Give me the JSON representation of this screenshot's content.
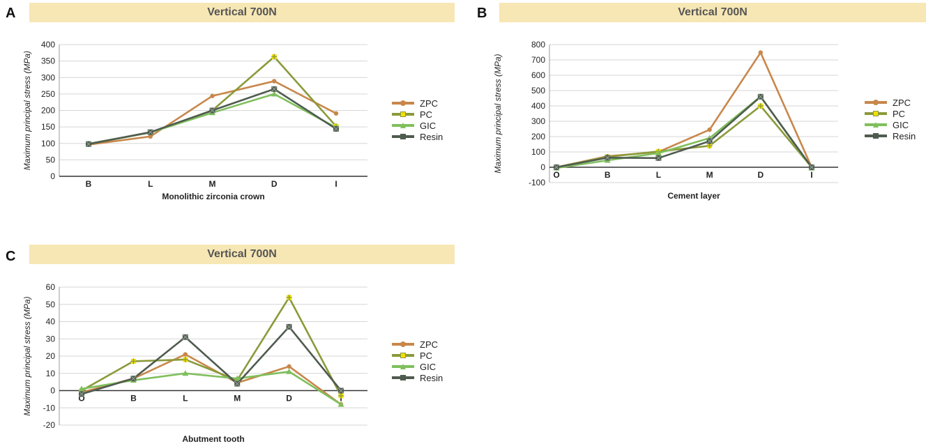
{
  "panels": [
    {
      "letter": "A",
      "banner": "Vertical 700N"
    },
    {
      "letter": "B",
      "banner": "Vertical 700N"
    },
    {
      "letter": "C",
      "banner": "Vertical 700N"
    }
  ],
  "colors": {
    "ZPC": "#c8874b",
    "PC": "#8a9a3a",
    "GIC": "#7fbf5c",
    "Resin": "#4f5b4f",
    "pc_marker": "#f0e000",
    "banner_bg": "#f7e7b5",
    "grid": "#d6d6d6"
  },
  "legend": [
    "ZPC",
    "PC",
    "GIC",
    "Resin"
  ],
  "chart_data": [
    {
      "type": "line",
      "title": "Vertical 700N",
      "xlabel": "Monolithic zirconia crown",
      "ylabel": "Maximum principal stress (MPa)",
      "categories": [
        "B",
        "L",
        "M",
        "D",
        "I"
      ],
      "ylim": [
        0,
        400
      ],
      "yticks": [
        0,
        50,
        100,
        150,
        200,
        250,
        300,
        350,
        400
      ],
      "grid": true,
      "legend_position": "right",
      "series": [
        {
          "name": "ZPC",
          "values": [
            96,
            121,
            244,
            289,
            191
          ]
        },
        {
          "name": "PC",
          "values": [
            98,
            133,
            200,
            363,
            152
          ]
        },
        {
          "name": "GIC",
          "values": [
            99,
            133,
            193,
            250,
            148
          ]
        },
        {
          "name": "Resin",
          "values": [
            98,
            134,
            200,
            265,
            144
          ]
        }
      ]
    },
    {
      "type": "line",
      "title": "Vertical 700N",
      "xlabel": "Cement layer",
      "ylabel": "Maximum principal stress (MPa)",
      "categories": [
        "O",
        "B",
        "L",
        "M",
        "D",
        "I"
      ],
      "ylim": [
        -100,
        800
      ],
      "yticks": [
        -100,
        0,
        100,
        200,
        300,
        400,
        500,
        600,
        700,
        800
      ],
      "grid": true,
      "legend_position": "right",
      "series": [
        {
          "name": "ZPC",
          "values": [
            0,
            72,
            100,
            245,
            748,
            0
          ]
        },
        {
          "name": "PC",
          "values": [
            0,
            68,
            103,
            140,
            400,
            0
          ]
        },
        {
          "name": "GIC",
          "values": [
            -5,
            45,
            92,
            190,
            462,
            -5
          ]
        },
        {
          "name": "Resin",
          "values": [
            0,
            62,
            60,
            170,
            460,
            0
          ]
        }
      ]
    },
    {
      "type": "line",
      "title": "Vertical 700N",
      "xlabel": "Abutment tooth",
      "ylabel": "Maximum principal stress (MPa)",
      "categories": [
        "O",
        "B",
        "L",
        "M",
        "D",
        "I"
      ],
      "ylim": [
        -20,
        60
      ],
      "yticks": [
        -20,
        -10,
        0,
        10,
        20,
        30,
        40,
        50,
        60
      ],
      "grid": true,
      "legend_position": "right",
      "series": [
        {
          "name": "ZPC",
          "values": [
            -1,
            7,
            21,
            4.5,
            14,
            -8
          ]
        },
        {
          "name": "PC",
          "values": [
            0,
            17,
            18,
            6,
            54,
            -3
          ]
        },
        {
          "name": "GIC",
          "values": [
            1,
            6,
            10,
            7,
            11,
            -8
          ]
        },
        {
          "name": "Resin",
          "values": [
            -2,
            7,
            31,
            4,
            37,
            0
          ]
        }
      ]
    }
  ]
}
